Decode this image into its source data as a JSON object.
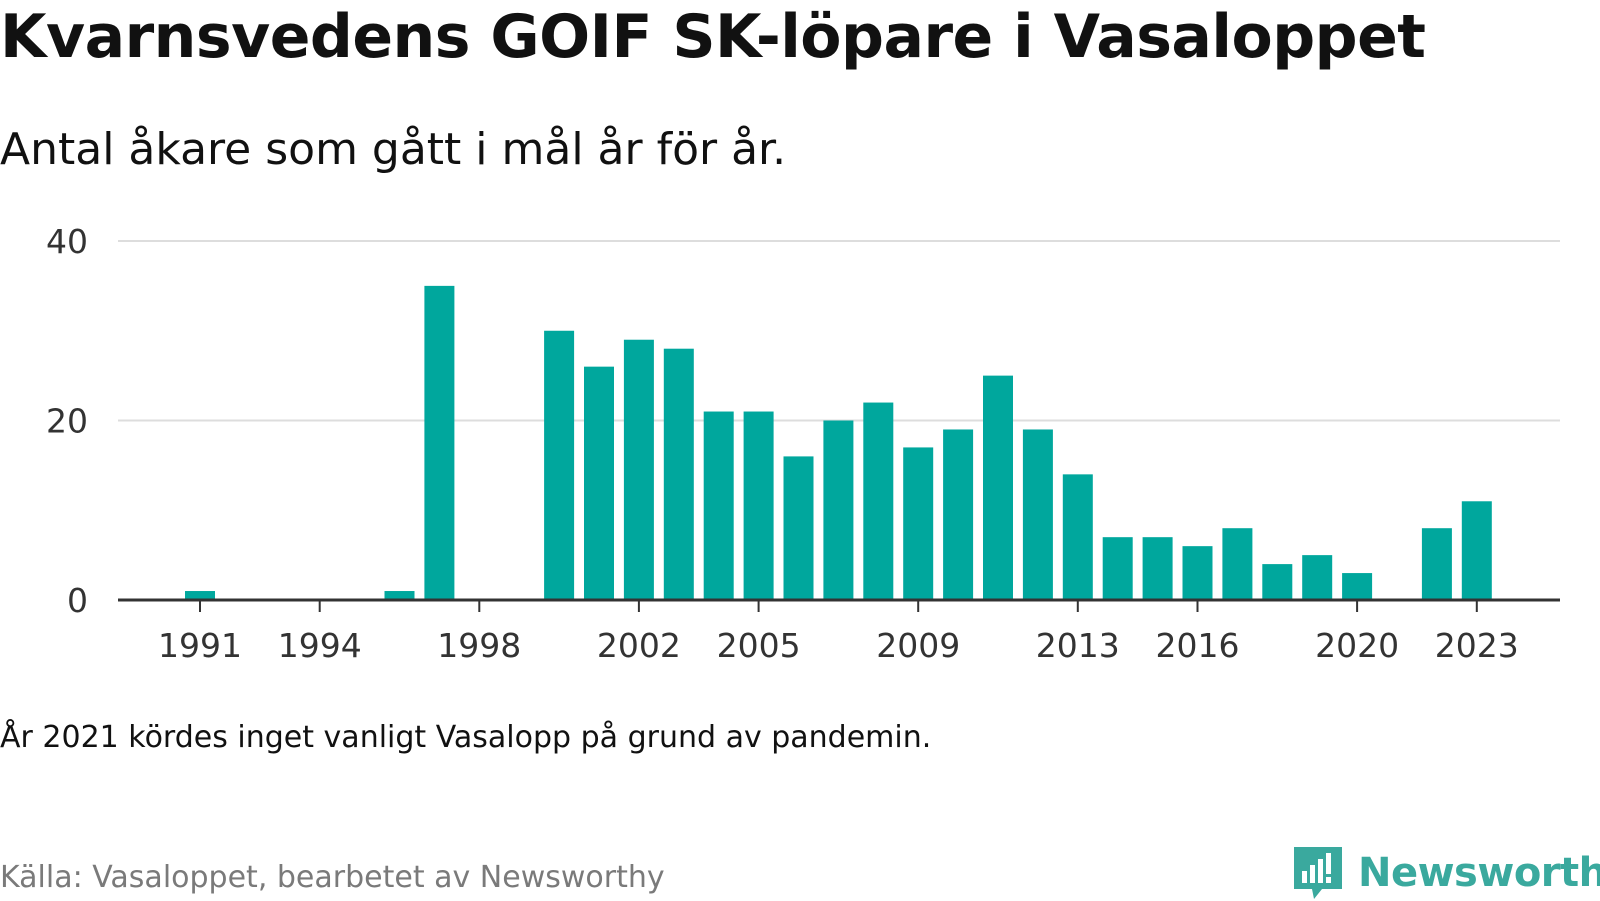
{
  "title": "Kvarnsvedens GOIF SK-löpare i Vasaloppet",
  "subtitle": "Antal åkare som gått i mål år för år.",
  "note": "År 2021 kördes inget vanligt Vasalopp på grund av pandemin.",
  "source": "Källa: Vasaloppet, bearbetet av Newsworthy",
  "brand": {
    "name": "Newsworthy",
    "icon": "newsworthy-logo-icon"
  },
  "colors": {
    "bar": "#00a79d",
    "grid": "#dddddd",
    "axis": "#333333",
    "brand": "#3aa99e"
  },
  "chart_data": {
    "type": "bar",
    "x_tick_labels": [
      "1991",
      "1994",
      "1998",
      "2002",
      "2005",
      "2009",
      "2013",
      "2016",
      "2020",
      "2023"
    ],
    "y_tick_labels": [
      "0",
      "20",
      "40"
    ],
    "ylim": [
      0,
      40
    ],
    "grid": true,
    "categories": [
      1989,
      1990,
      1991,
      1992,
      1993,
      1994,
      1995,
      1996,
      1997,
      1998,
      1999,
      2000,
      2001,
      2002,
      2003,
      2004,
      2005,
      2006,
      2007,
      2008,
      2009,
      2010,
      2011,
      2012,
      2013,
      2014,
      2015,
      2016,
      2017,
      2018,
      2019,
      2020,
      2021,
      2022,
      2023,
      2024
    ],
    "values": [
      0,
      0,
      1,
      0,
      0,
      0,
      0,
      1,
      35,
      0,
      0,
      30,
      26,
      29,
      28,
      21,
      21,
      16,
      20,
      22,
      17,
      19,
      25,
      19,
      14,
      7,
      7,
      6,
      8,
      4,
      5,
      3,
      0,
      8,
      11,
      0
    ]
  }
}
